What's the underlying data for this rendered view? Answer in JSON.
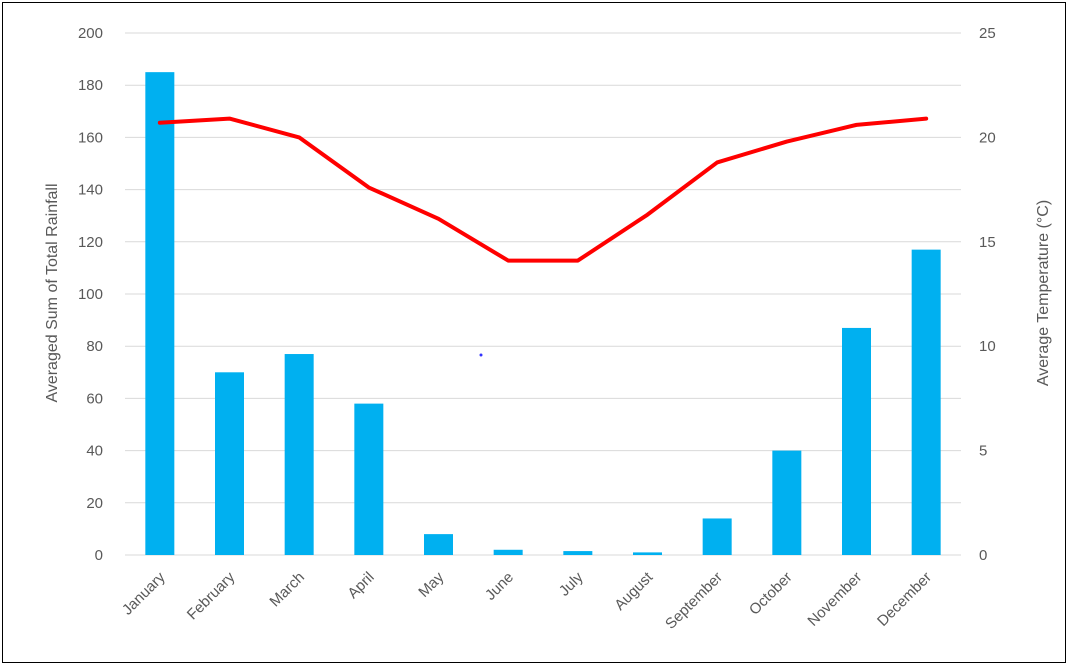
{
  "chart_data": {
    "type": "bar",
    "categories": [
      "January",
      "February",
      "March",
      "April",
      "May",
      "June",
      "July",
      "August",
      "September",
      "October",
      "November",
      "December"
    ],
    "series": [
      {
        "type": "bar",
        "axis": "left",
        "values": [
          185,
          70,
          77,
          58,
          8,
          2,
          1.5,
          1,
          14,
          40,
          87,
          117
        ],
        "color": "#00b0f0"
      },
      {
        "type": "line",
        "axis": "right",
        "values": [
          20.7,
          20.9,
          20.0,
          17.6,
          16.1,
          14.1,
          14.1,
          16.3,
          18.8,
          19.8,
          20.6,
          20.9
        ],
        "color": "#ff0000"
      }
    ],
    "ylabel": "Averaged Sum of Total Rainfall",
    "y2label": "Average Temperature (°C)",
    "ylim": [
      0,
      200
    ],
    "y2lim": [
      0,
      25
    ],
    "yticks": [
      "0",
      "20",
      "40",
      "60",
      "80",
      "100",
      "120",
      "140",
      "160",
      "180",
      "200"
    ],
    "y2ticks": [
      "0",
      "5",
      "10",
      "15",
      "20",
      "25"
    ],
    "grid": true,
    "legend": "none"
  }
}
